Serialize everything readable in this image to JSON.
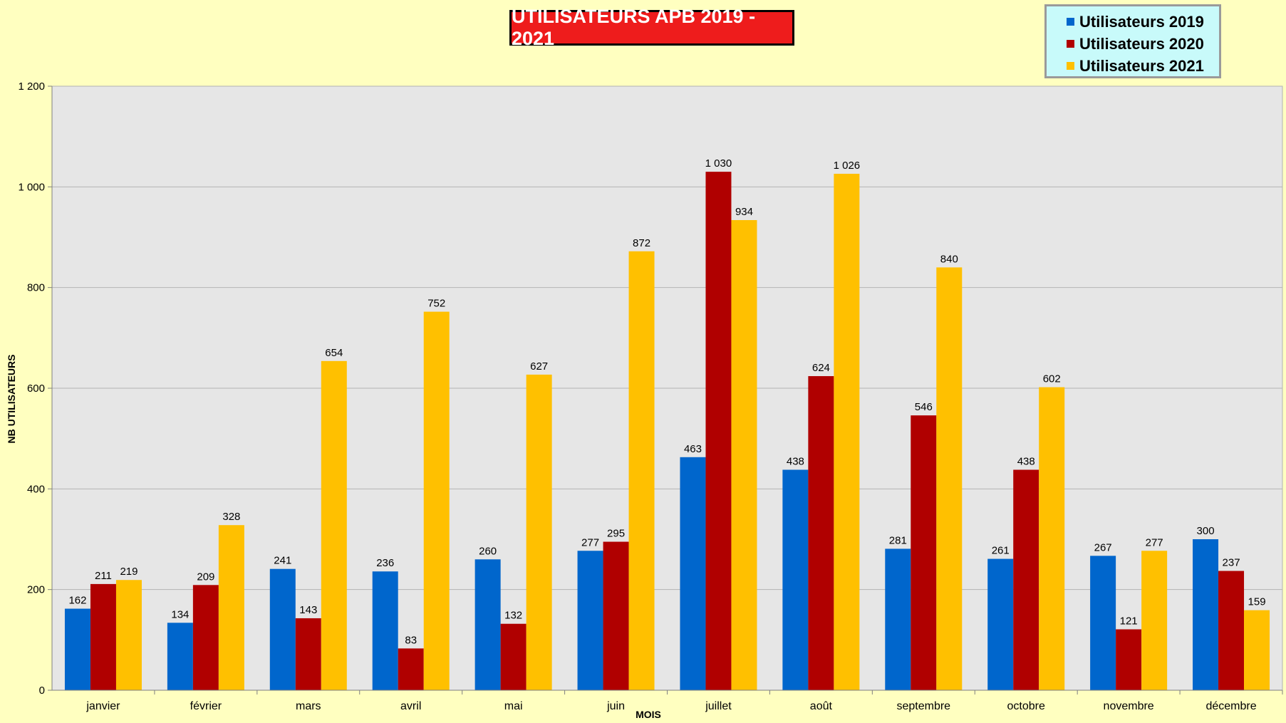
{
  "chart_data": {
    "type": "bar",
    "title": "UTILISATEURS APB 2019 - 2021",
    "xlabel": "MOIS",
    "ylabel": "NB UTILISATEURS",
    "ylim": [
      0,
      1200
    ],
    "yticks": [
      0,
      200,
      400,
      600,
      800,
      1000,
      1200
    ],
    "ytick_labels": [
      "0",
      "200",
      "400",
      "600",
      "800",
      "1 000",
      "1 200"
    ],
    "grid": true,
    "legend_position": "top-right",
    "categories": [
      "janvier",
      "février",
      "mars",
      "avril",
      "mai",
      "juin",
      "juillet",
      "août",
      "septembre",
      "octobre",
      "novembre",
      "décembre"
    ],
    "series": [
      {
        "name": "Utilisateurs 2019",
        "color": "#0066cc",
        "values": [
          162,
          134,
          241,
          236,
          260,
          277,
          463,
          438,
          281,
          261,
          267,
          300
        ],
        "labels": [
          "162",
          "134",
          "241",
          "236",
          "260",
          "277",
          "463",
          "438",
          "281",
          "261",
          "267",
          "300"
        ]
      },
      {
        "name": "Utilisateurs 2020",
        "color": "#b00000",
        "values": [
          211,
          209,
          143,
          83,
          132,
          295,
          1030,
          624,
          546,
          438,
          121,
          237
        ],
        "labels": [
          "211",
          "209",
          "143",
          "83",
          "132",
          "295",
          "1 030",
          "624",
          "546",
          "438",
          "121",
          "237"
        ]
      },
      {
        "name": "Utilisateurs 2021",
        "color": "#ffc000",
        "values": [
          219,
          328,
          654,
          752,
          627,
          872,
          934,
          1026,
          840,
          602,
          277,
          159
        ],
        "labels": [
          "219",
          "328",
          "654",
          "752",
          "627",
          "872",
          "934",
          "1 026",
          "840",
          "602",
          "277",
          "159"
        ]
      }
    ]
  },
  "style": {
    "background": "#ffffc0",
    "plot_background": "#e6e6e6",
    "grid_color": "#b3b3b3",
    "title_background": "#ee1c1c",
    "legend_background": "#c8fafa"
  }
}
